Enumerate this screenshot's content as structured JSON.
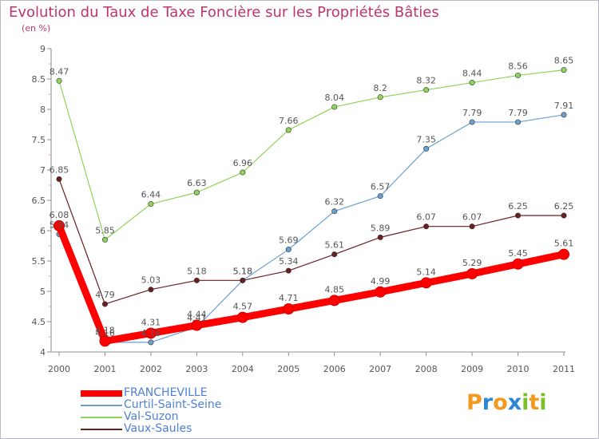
{
  "header": {
    "title": "Evolution du Taux de Taxe Foncière sur les Propriétés Bâties",
    "unit": "(en %)"
  },
  "logo": {
    "letters": [
      "P",
      "r",
      "o",
      "x",
      "i",
      "t",
      "i"
    ],
    "colors": [
      "#f39a1e",
      "#2e86d6",
      "#f39a1e",
      "#2e86d6",
      "#7bbf2a",
      "#f39a1e",
      "#7bbf2a"
    ]
  },
  "chart_data": {
    "type": "line",
    "title": "Evolution du Taux de Taxe Foncière sur les Propriétés Bâties",
    "ylabel": "(en %)",
    "xlabel": "",
    "ylim": [
      4,
      9
    ],
    "grid": false,
    "categories": [
      "2000",
      "2001",
      "2002",
      "2003",
      "2004",
      "2005",
      "2006",
      "2007",
      "2008",
      "2009",
      "2010",
      "2011"
    ],
    "yticks": [
      "4",
      "4.5",
      "5",
      "5.5",
      "6",
      "6.5",
      "7",
      "7.5",
      "8",
      "8.5",
      "9"
    ],
    "series": [
      {
        "name": "FRANCHEVILLE",
        "color": "#ff0000",
        "values": [
          6.08,
          4.18,
          4.31,
          4.44,
          4.57,
          4.71,
          4.85,
          4.99,
          5.14,
          5.29,
          5.45,
          5.61
        ],
        "labels": [
          "6.08",
          "4.18",
          "4.31",
          "4.44",
          "4.57",
          "4.71",
          "4.85",
          "4.99",
          "5.14",
          "5.29",
          "5.45",
          "5.61"
        ]
      },
      {
        "name": "Curtil-Saint-Seine",
        "color": "#6a9fd0",
        "values": [
          5.94,
          4.16,
          4.16,
          4.41,
          5.18,
          5.69,
          6.32,
          6.57,
          7.35,
          7.79,
          7.79,
          7.91
        ],
        "labels": [
          "5.94",
          "4.16",
          "4.16",
          "4.41",
          "5.18",
          "5.69",
          "6.32",
          "6.57",
          "7.35",
          "7.79",
          "7.79",
          "7.91"
        ]
      },
      {
        "name": "Val-Suzon",
        "color": "#8fd45a",
        "values": [
          8.47,
          5.85,
          6.44,
          6.63,
          6.96,
          7.66,
          8.04,
          8.2,
          8.32,
          8.44,
          8.56,
          8.65
        ],
        "labels": [
          "8.47",
          "5.85",
          "6.44",
          "6.63",
          "6.96",
          "7.66",
          "8.04",
          "8.2",
          "8.32",
          "8.44",
          "8.56",
          "8.65"
        ]
      },
      {
        "name": "Vaux-Saules",
        "color": "#6b1e1e",
        "values": [
          6.85,
          4.79,
          5.03,
          5.18,
          5.18,
          5.34,
          5.61,
          5.89,
          6.07,
          6.07,
          6.25,
          6.25
        ],
        "labels": [
          "6.85",
          "4.79",
          "5.03",
          "5.18",
          "5.18",
          "5.34",
          "5.61",
          "5.89",
          "6.07",
          "6.07",
          "6.25",
          "6.25"
        ]
      }
    ],
    "legend": [
      "FRANCHEVILLE",
      "Curtil-Saint-Seine",
      "Val-Suzon",
      "Vaux-Saules"
    ]
  }
}
